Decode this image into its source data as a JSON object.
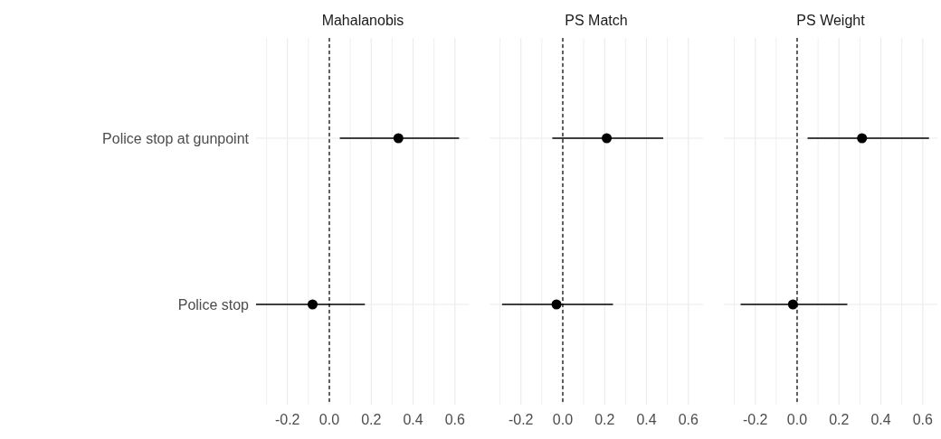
{
  "chart_data": [
    {
      "type": "scatter",
      "title": "Mahalanobis",
      "orientation": "horizontal",
      "categories": [
        "Police stop at gunpoint",
        "Police stop"
      ],
      "values": [
        0.33,
        -0.08
      ],
      "errors": [
        [
          0.05,
          0.62
        ],
        [
          -0.35,
          0.17
        ]
      ],
      "color": "#000000",
      "marker": "circle",
      "xlim": [
        -0.35,
        0.67
      ],
      "xticks": [
        {
          "value": -0.3,
          "label": null
        },
        -0.2,
        {
          "value": -0.1,
          "label": null
        },
        {
          "value": 0,
          "label": "0.0"
        },
        {
          "value": 0.1,
          "label": null
        },
        0.2,
        {
          "value": 0.3,
          "label": null
        },
        0.4,
        {
          "value": 0.5,
          "label": null
        },
        0.6
      ],
      "grid": true,
      "ref_lines": [
        {
          "axis": "x",
          "value": 0,
          "line_style": "dashed",
          "color": "#000000"
        }
      ]
    },
    {
      "type": "scatter",
      "title": "PS Match",
      "orientation": "horizontal",
      "categories": [
        null,
        null
      ],
      "values": [
        0.21,
        -0.03
      ],
      "errors": [
        [
          -0.05,
          0.48
        ],
        [
          -0.29,
          0.24
        ]
      ],
      "color": "#000000",
      "marker": "circle",
      "xlim": [
        -0.35,
        0.67
      ],
      "xticks": [
        {
          "value": -0.3,
          "label": null
        },
        -0.2,
        {
          "value": -0.1,
          "label": null
        },
        {
          "value": 0,
          "label": "0.0"
        },
        {
          "value": 0.1,
          "label": null
        },
        0.2,
        {
          "value": 0.3,
          "label": null
        },
        0.4,
        {
          "value": 0.5,
          "label": null
        },
        0.6
      ],
      "grid": true,
      "tick_labels": "x",
      "ref_lines": [
        {
          "axis": "x",
          "value": 0,
          "line_style": "dashed",
          "color": "#000000"
        }
      ]
    },
    {
      "type": "scatter",
      "title": "PS Weight",
      "orientation": "horizontal",
      "categories": [
        null,
        null
      ],
      "values": [
        0.31,
        -0.02
      ],
      "errors": [
        [
          0.05,
          0.63
        ],
        [
          -0.27,
          0.24
        ]
      ],
      "color": "#000000",
      "marker": "circle",
      "xlim": [
        -0.35,
        0.67
      ],
      "xticks": [
        {
          "value": -0.3,
          "label": null
        },
        -0.2,
        {
          "value": -0.1,
          "label": null
        },
        {
          "value": 0,
          "label": "0.0"
        },
        {
          "value": 0.1,
          "label": null
        },
        0.2,
        {
          "value": 0.3,
          "label": null
        },
        0.4,
        {
          "value": 0.5,
          "label": null
        },
        0.6
      ],
      "grid": true,
      "tick_labels": "x",
      "ref_lines": [
        {
          "axis": "x",
          "value": 0,
          "line_style": "dashed",
          "color": "#000000"
        }
      ]
    }
  ]
}
